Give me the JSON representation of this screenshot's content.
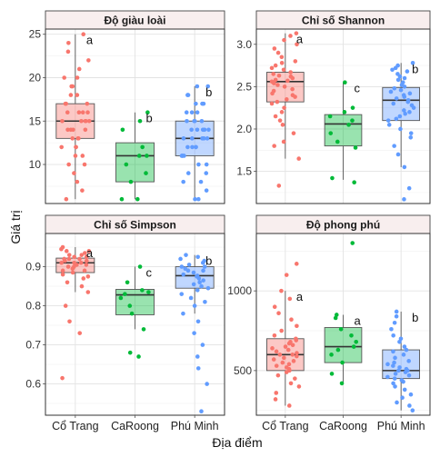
{
  "axis": {
    "xlabel": "Địa điểm",
    "ylabel": "Giá trị"
  },
  "colors": {
    "Cổ Trang": "#f8766d",
    "CaRoong": "#00ba38",
    "Phú Minh": "#619cff"
  },
  "chart_data": [
    {
      "type": "box",
      "title": "Độ giàu loài",
      "categories": [
        "Cổ Trang",
        "CaRoong",
        "Phú Minh"
      ],
      "ylim": [
        5.5,
        25.6
      ],
      "yticks": [
        "10",
        "15",
        "20",
        "25"
      ],
      "boxes": [
        {
          "q1": 13,
          "median": 15,
          "q3": 17,
          "whisker_low": 6,
          "whisker_high": 25,
          "outliers": []
        },
        {
          "q1": 8,
          "median": 11,
          "q3": 12.5,
          "whisker_low": 6,
          "whisker_high": 16,
          "outliers": []
        },
        {
          "q1": 11,
          "median": 13,
          "q3": 15,
          "whisker_low": 6,
          "whisker_high": 19,
          "outliers": []
        }
      ],
      "letters": [
        "a",
        "b",
        "b"
      ],
      "points": [
        [
          6,
          7,
          8,
          9,
          10,
          10,
          11,
          11,
          12,
          12,
          12,
          13,
          13,
          13,
          14,
          14,
          14,
          14,
          15,
          15,
          15,
          15,
          15,
          16,
          16,
          16,
          16,
          17,
          17,
          17,
          18,
          18,
          19,
          19,
          20,
          20,
          21,
          22,
          23,
          24,
          25
        ],
        [
          6,
          6,
          8,
          9,
          10,
          11,
          11,
          12,
          14,
          15,
          16
        ],
        [
          6,
          6,
          7,
          8,
          8,
          9,
          9,
          10,
          10,
          11,
          11,
          11,
          11,
          12,
          12,
          12,
          12,
          13,
          13,
          13,
          13,
          13,
          14,
          14,
          14,
          14,
          14,
          15,
          15,
          15,
          15,
          16,
          16,
          16,
          17,
          17,
          17,
          18,
          18,
          19,
          19
        ]
      ]
    },
    {
      "type": "box",
      "title": "Chỉ số Shannon",
      "categories": [
        "Cổ Trang",
        "CaRoong",
        "Phú Minh"
      ],
      "ylim": [
        1.12,
        3.18
      ],
      "yticks": [
        "1.5",
        "2.0",
        "2.5",
        "3.0"
      ],
      "boxes": [
        {
          "q1": 2.32,
          "median": 2.56,
          "q3": 2.67,
          "whisker_low": 1.65,
          "whisker_high": 3.13,
          "outliers": [
            1.33
          ]
        },
        {
          "q1": 1.8,
          "median": 2.06,
          "q3": 2.17,
          "whisker_low": 1.4,
          "whisker_high": 2.55,
          "outliers": []
        },
        {
          "q1": 2.1,
          "median": 2.34,
          "q3": 2.49,
          "whisker_low": 1.55,
          "whisker_high": 2.78,
          "outliers": [
            1.17
          ]
        }
      ],
      "letters": [
        "a",
        "c",
        "b"
      ],
      "points": [
        [
          1.33,
          1.65,
          1.8,
          1.85,
          1.95,
          2.05,
          2.1,
          2.15,
          2.2,
          2.25,
          2.3,
          2.32,
          2.35,
          2.38,
          2.4,
          2.42,
          2.45,
          2.47,
          2.5,
          2.52,
          2.54,
          2.55,
          2.56,
          2.57,
          2.58,
          2.6,
          2.62,
          2.63,
          2.65,
          2.67,
          2.7,
          2.72,
          2.75,
          2.78,
          2.8,
          2.85,
          2.9,
          2.95,
          3.0,
          3.05,
          3.1,
          3.13
        ],
        [
          1.37,
          1.42,
          1.78,
          1.85,
          1.95,
          2.05,
          2.1,
          2.15,
          2.2,
          2.25,
          2.55
        ],
        [
          1.17,
          1.3,
          1.55,
          1.7,
          1.8,
          1.9,
          1.95,
          2.0,
          2.05,
          2.1,
          2.12,
          2.15,
          2.18,
          2.2,
          2.22,
          2.25,
          2.28,
          2.3,
          2.32,
          2.34,
          2.36,
          2.38,
          2.4,
          2.42,
          2.44,
          2.46,
          2.48,
          2.5,
          2.52,
          2.55,
          2.58,
          2.6,
          2.62,
          2.65,
          2.68,
          2.7,
          2.72,
          2.75,
          2.78
        ]
      ]
    },
    {
      "type": "box",
      "title": "Chỉ số Simpson",
      "categories": [
        "Cổ Trang",
        "CaRoong",
        "Phú Minh"
      ],
      "ylim": [
        0.52,
        0.985
      ],
      "yticks": [
        "0.6",
        "0.7",
        "0.8",
        "0.9"
      ],
      "boxes": [
        {
          "q1": 0.885,
          "median": 0.91,
          "q3": 0.922,
          "whisker_low": 0.835,
          "whisker_high": 0.95,
          "outliers": [
            0.615,
            0.73,
            0.76,
            0.8
          ]
        },
        {
          "q1": 0.777,
          "median": 0.828,
          "q3": 0.842,
          "whisker_low": 0.74,
          "whisker_high": 0.9,
          "outliers": [
            0.67,
            0.68
          ]
        },
        {
          "q1": 0.845,
          "median": 0.877,
          "q3": 0.9,
          "whisker_low": 0.78,
          "whisker_high": 0.93,
          "outliers": [
            0.53,
            0.6,
            0.64,
            0.67,
            0.7,
            0.73,
            0.76
          ]
        }
      ],
      "letters": [
        "a",
        "c",
        "b"
      ],
      "points": [
        [
          0.615,
          0.73,
          0.76,
          0.8,
          0.835,
          0.85,
          0.86,
          0.87,
          0.875,
          0.88,
          0.885,
          0.89,
          0.89,
          0.895,
          0.9,
          0.9,
          0.905,
          0.905,
          0.91,
          0.91,
          0.91,
          0.915,
          0.915,
          0.92,
          0.92,
          0.92,
          0.925,
          0.925,
          0.93,
          0.93,
          0.935,
          0.94,
          0.94,
          0.945,
          0.95
        ],
        [
          0.67,
          0.68,
          0.74,
          0.78,
          0.8,
          0.82,
          0.83,
          0.835,
          0.84,
          0.86,
          0.9
        ],
        [
          0.53,
          0.6,
          0.64,
          0.67,
          0.7,
          0.73,
          0.76,
          0.78,
          0.8,
          0.81,
          0.82,
          0.83,
          0.84,
          0.845,
          0.85,
          0.855,
          0.86,
          0.865,
          0.87,
          0.875,
          0.877,
          0.88,
          0.885,
          0.89,
          0.89,
          0.895,
          0.9,
          0.9,
          0.905,
          0.91,
          0.915,
          0.92,
          0.925,
          0.93
        ]
      ]
    },
    {
      "type": "box",
      "title": "Độ phong phú",
      "categories": [
        "Cổ Trang",
        "CaRoong",
        "Phú Minh"
      ],
      "ylim": [
        220,
        1360
      ],
      "yticks": [
        "500",
        "1000"
      ],
      "boxes": [
        {
          "q1": 500,
          "median": 600,
          "q3": 700,
          "whisker_low": 280,
          "whisker_high": 1000,
          "outliers": [
            1100,
            1170
          ]
        },
        {
          "q1": 550,
          "median": 650,
          "q3": 770,
          "whisker_low": 420,
          "whisker_high": 850,
          "outliers": [
            1300
          ]
        },
        {
          "q1": 450,
          "median": 500,
          "q3": 630,
          "whisker_low": 250,
          "whisker_high": 870,
          "outliers": []
        }
      ],
      "letters": [
        "a",
        "a",
        "b"
      ],
      "points": [
        [
          280,
          320,
          360,
          400,
          420,
          450,
          470,
          490,
          500,
          510,
          520,
          530,
          540,
          550,
          560,
          570,
          580,
          590,
          600,
          600,
          610,
          620,
          630,
          640,
          650,
          660,
          670,
          680,
          690,
          700,
          720,
          750,
          780,
          820,
          860,
          900,
          950,
          1000,
          1100,
          1170
        ],
        [
          420,
          480,
          550,
          600,
          630,
          650,
          680,
          720,
          760,
          830,
          850,
          1300
        ],
        [
          250,
          280,
          300,
          330,
          350,
          380,
          400,
          420,
          430,
          440,
          450,
          460,
          470,
          480,
          490,
          500,
          500,
          510,
          520,
          530,
          540,
          550,
          560,
          580,
          600,
          620,
          630,
          650,
          680,
          700,
          720,
          760,
          800,
          840,
          870
        ]
      ]
    }
  ]
}
